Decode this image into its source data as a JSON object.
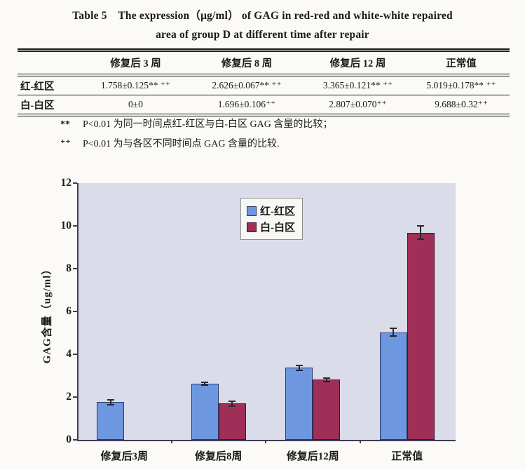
{
  "document": {
    "title_line1": "Table 5　The expression（μg/ml） of GAG in red-red and white-white repaired",
    "title_line2": "area of group D at different time after repair"
  },
  "table": {
    "columns": [
      "",
      "修复后 3 周",
      "修复后 8 周",
      "修复后 12 周",
      "正常值"
    ],
    "rows": [
      {
        "label": "红-红区",
        "values": [
          "1.758±0.125** ⁺⁺",
          "2.626±0.067** ⁺⁺",
          "3.365±0.121** ⁺⁺",
          "5.019±0.178** ⁺⁺"
        ]
      },
      {
        "label": "白-白区",
        "values": [
          "0±0",
          "1.696±0.106⁺⁺",
          "2.807±0.070⁺⁺",
          "9.688±0.32⁺⁺"
        ]
      }
    ],
    "footnotes": [
      {
        "marker": "**",
        "text": "P<0.01 为同一时间点红-红区与白-白区 GAG 含量的比较；"
      },
      {
        "marker": "⁺⁺",
        "text": "P<0.01 为与各区不同时间点 GAG 含量的比较."
      }
    ]
  },
  "chart_data": {
    "type": "bar",
    "categories": [
      "修复后3周",
      "修复后8周",
      "修复后12周",
      "正常值"
    ],
    "series": [
      {
        "name": "红-红区",
        "color": "#6d97e0",
        "border_color": "#2b3a66",
        "values": [
          1.758,
          2.626,
          3.365,
          5.019
        ],
        "errors": [
          0.125,
          0.067,
          0.121,
          0.178
        ]
      },
      {
        "name": "白-白区",
        "color": "#9f2f56",
        "border_color": "#4d1030",
        "values": [
          0,
          1.696,
          2.807,
          9.688
        ],
        "errors": [
          0,
          0.106,
          0.07,
          0.32
        ]
      }
    ],
    "ylabel": "GAG含量（ug/ml）",
    "ylim": [
      0,
      12
    ],
    "yticks": [
      0,
      2,
      4,
      6,
      8,
      10,
      12
    ],
    "legend_position": "top-center",
    "plot_bg": "#dadcea",
    "grid": false
  }
}
